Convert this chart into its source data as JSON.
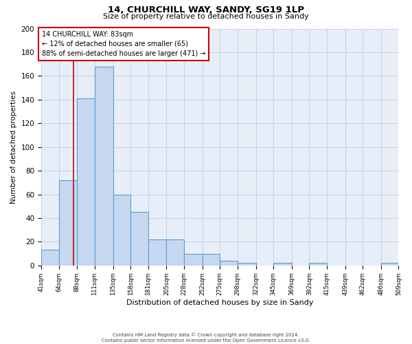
{
  "title1": "14, CHURCHILL WAY, SANDY, SG19 1LP",
  "title2": "Size of property relative to detached houses in Sandy",
  "xlabel": "Distribution of detached houses by size in Sandy",
  "ylabel": "Number of detached properties",
  "bin_edges": [
    41,
    64,
    88,
    111,
    135,
    158,
    181,
    205,
    228,
    252,
    275,
    298,
    322,
    345,
    369,
    392,
    415,
    439,
    462,
    486,
    509
  ],
  "bar_heights": [
    13,
    72,
    141,
    168,
    60,
    45,
    22,
    22,
    10,
    10,
    4,
    2,
    0,
    2,
    0,
    2,
    0,
    0,
    0,
    2
  ],
  "bar_color": "#c5d8f0",
  "bar_edge_color": "#5b9bd5",
  "grid_color": "#c8d4e8",
  "bg_color": "#e8eef8",
  "property_size": 83,
  "red_line_color": "#cc0000",
  "annotation_text": "14 CHURCHILL WAY: 83sqm\n← 12% of detached houses are smaller (65)\n88% of semi-detached houses are larger (471) →",
  "annotation_box_color": "#ffffff",
  "annotation_box_edge": "#cc0000",
  "footnote": "Contains HM Land Registry data © Crown copyright and database right 2024.\nContains public sector information licensed under the Open Government Licence v3.0.",
  "ylim": [
    0,
    200
  ],
  "yticks": [
    0,
    20,
    40,
    60,
    80,
    100,
    120,
    140,
    160,
    180,
    200
  ]
}
